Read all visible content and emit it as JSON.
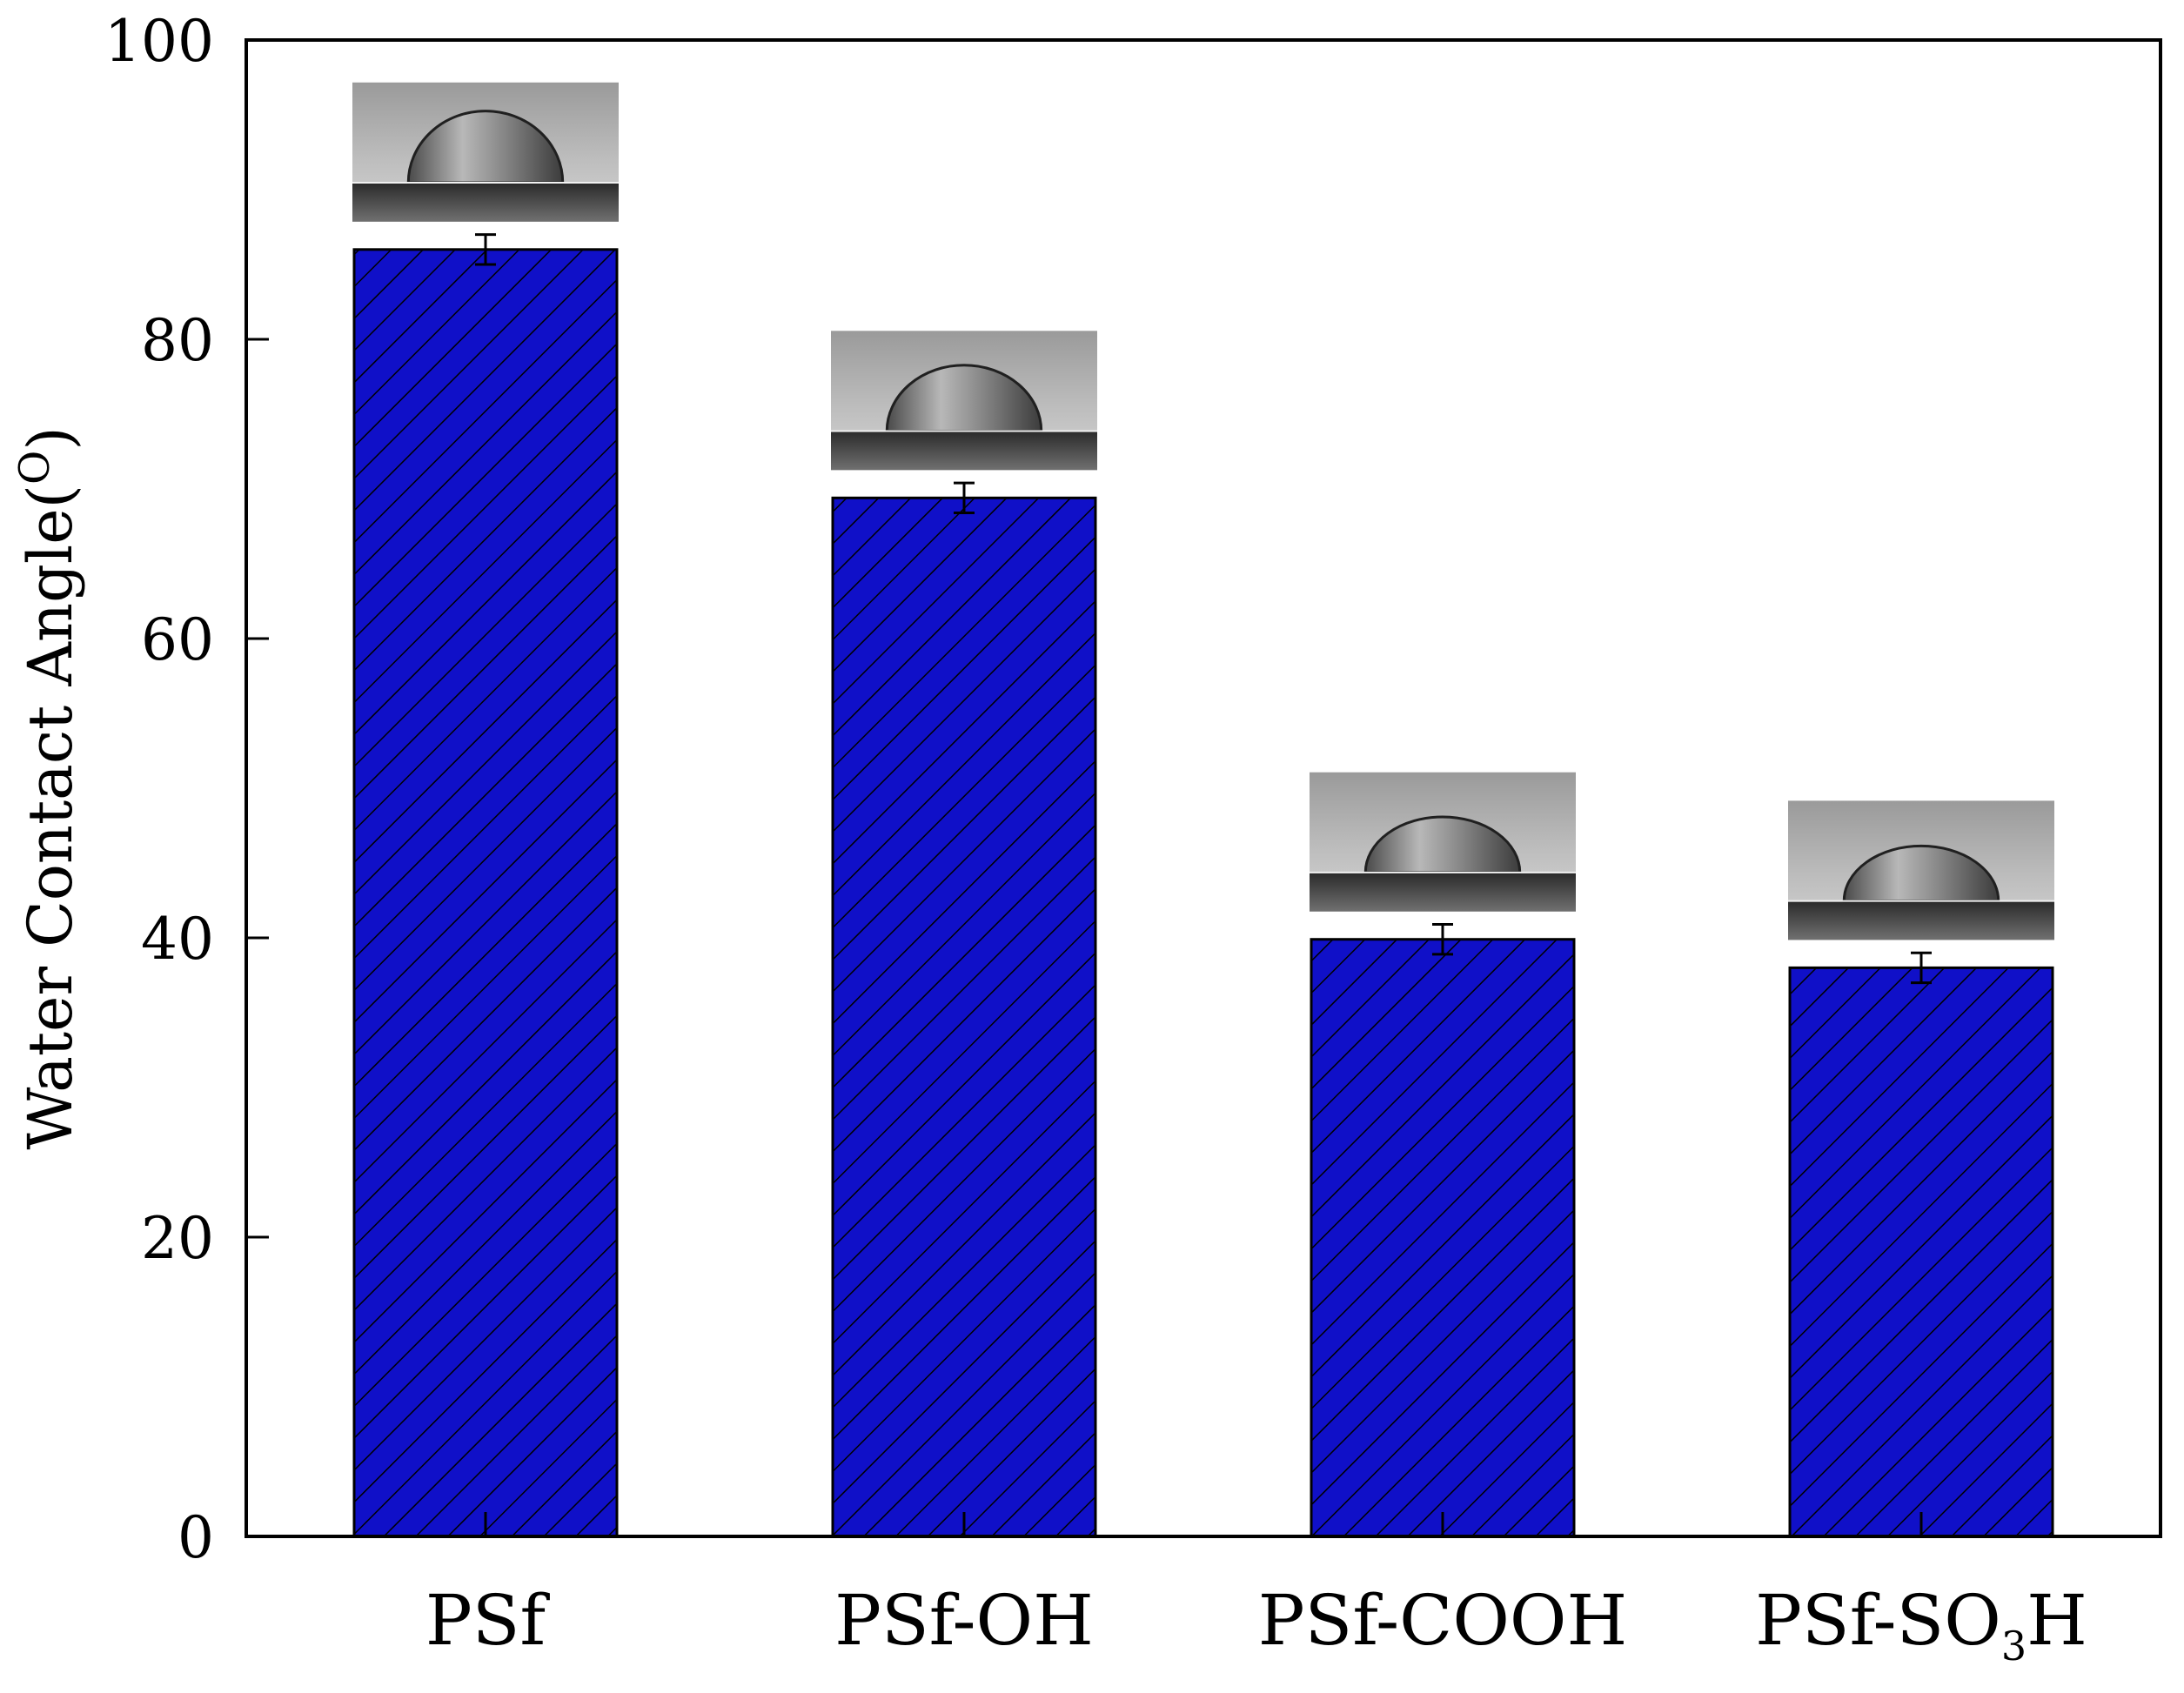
{
  "chart_data": {
    "type": "bar",
    "title": "",
    "xlabel": "",
    "ylabel": "Water Contact Angle(",
    "ylabel_degree": "O",
    "ylabel_close": ")",
    "categories": [
      "PSf",
      "PSf-OH",
      "PSf-COOH",
      "PSf-SO₃H"
    ],
    "values": [
      86.0,
      69.4,
      39.9,
      38.0
    ],
    "errors": [
      1.0,
      1.0,
      1.0,
      1.0
    ],
    "ylim": [
      0,
      100
    ],
    "yticks": [
      0,
      20,
      40,
      60,
      80,
      100
    ],
    "bar_color": "#1010c8",
    "hatch": "diagonal",
    "grid": false,
    "legend": "none",
    "insets": "water droplet photograph above each bar"
  }
}
